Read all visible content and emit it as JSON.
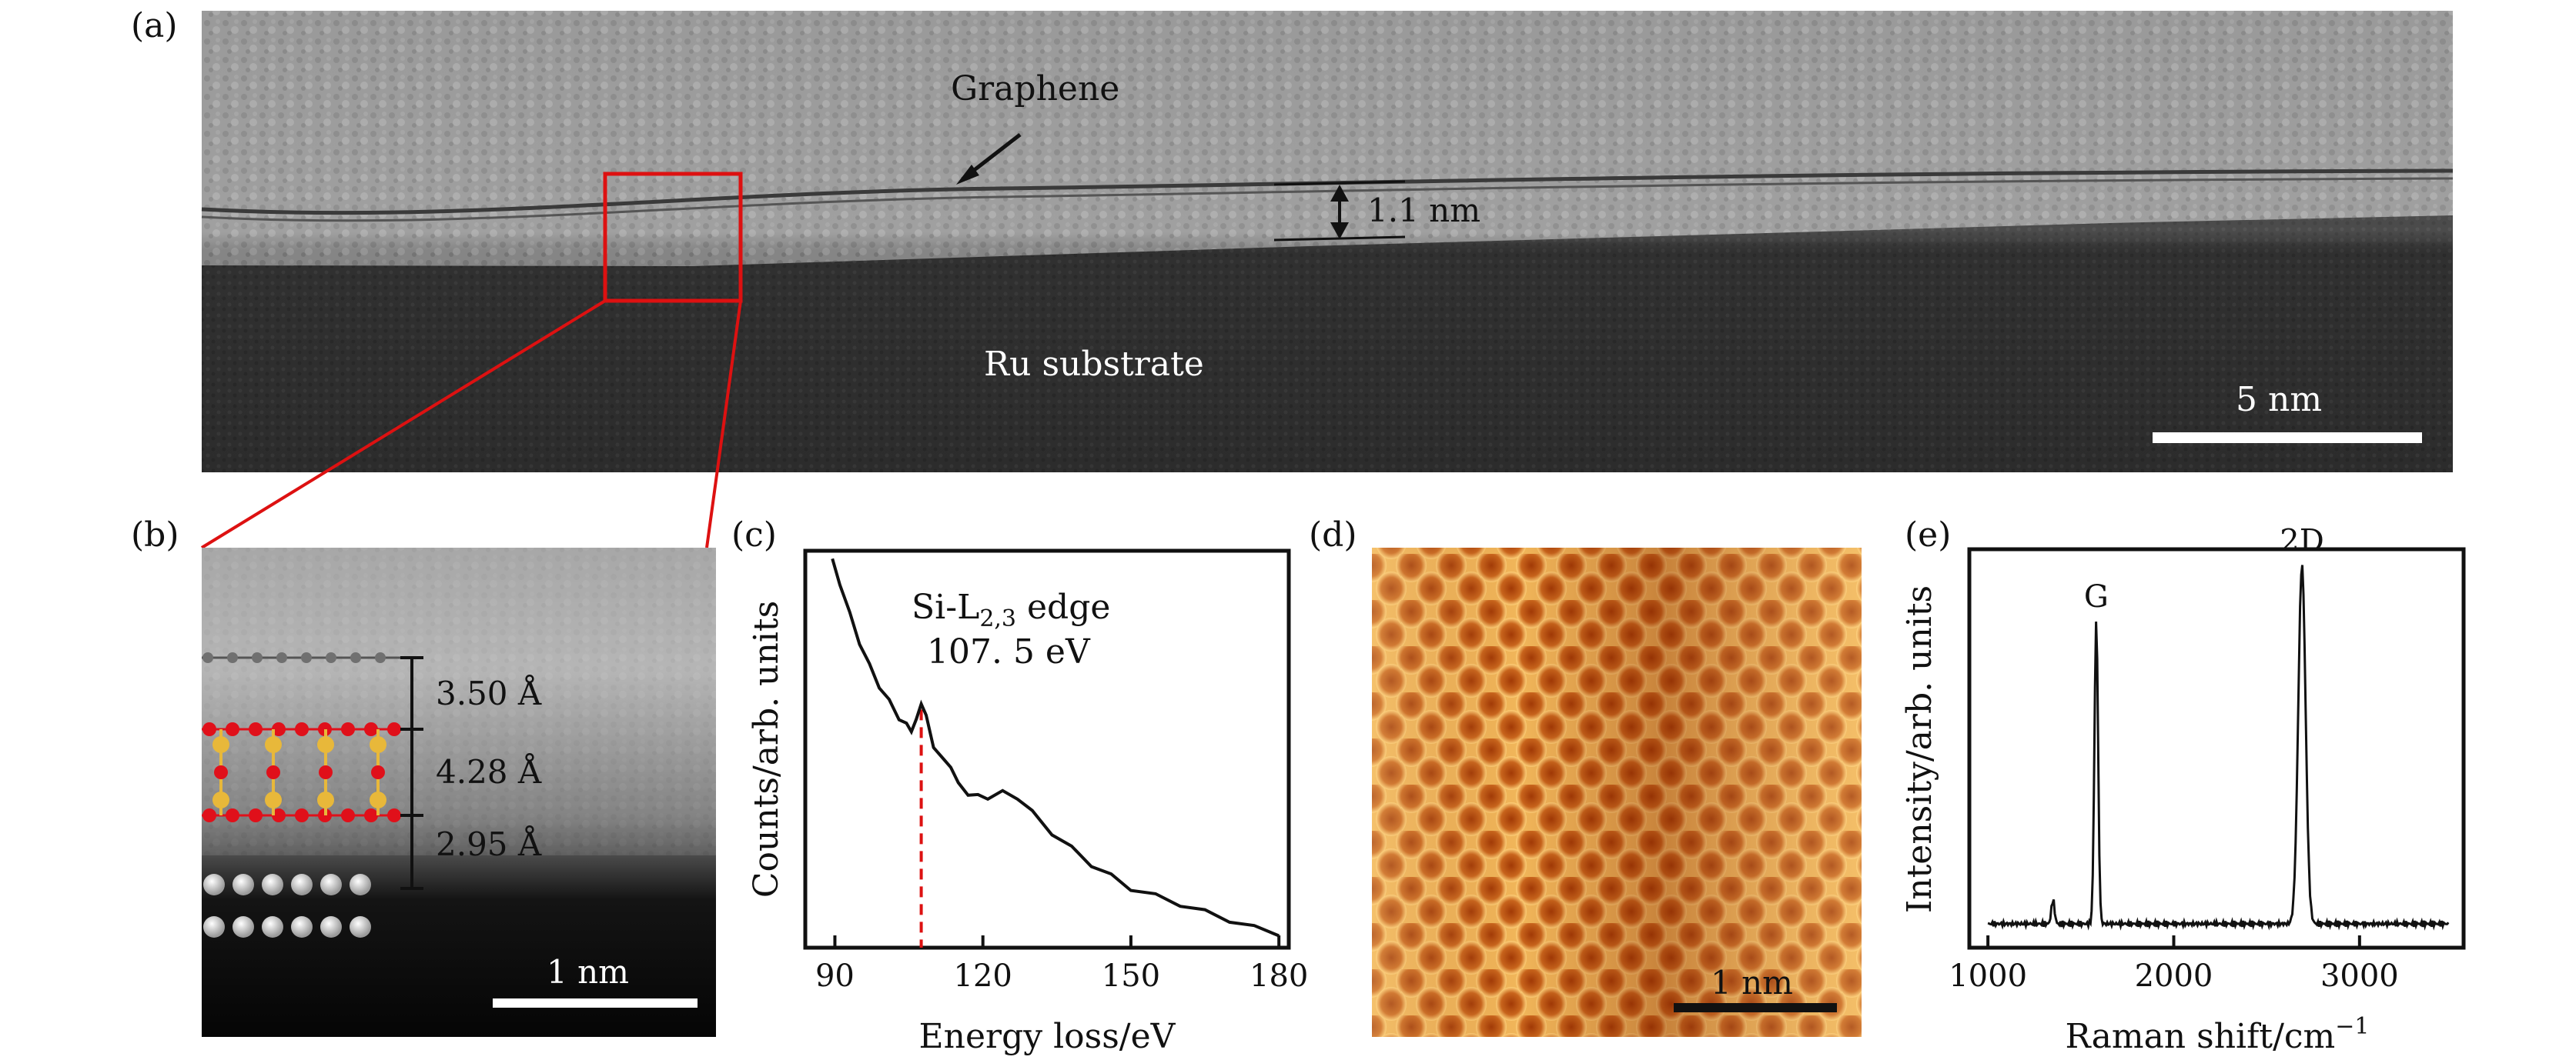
{
  "panels": {
    "a": {
      "label": "(a)",
      "graphene_label": "Graphene",
      "thickness_label": "1.1 nm",
      "substrate_label": "Ru substrate",
      "scale_label": "5 nm",
      "colors": {
        "zoom_box": "#dd1111",
        "scale_bar": "#ffffff"
      }
    },
    "b": {
      "label": "(b)",
      "spacings": [
        "3.50 Å",
        "4.28 Å",
        "2.95 Å"
      ],
      "scale_label": "1 nm",
      "colors": {
        "oxygen": "#e0101a",
        "silicon": "#e8b83a",
        "carbon": "#707070",
        "ruthenium": "#d9d9d9"
      }
    },
    "d": {
      "label": "(d)",
      "scale_label": "1 nm",
      "colors": {
        "bright": "#ffd27a",
        "dark": "#a23a06"
      }
    }
  },
  "chart_data": [
    {
      "panel": "(c)",
      "type": "line",
      "xlabel": "Energy loss/eV",
      "ylabel": "Counts/arb. units",
      "xlim": [
        84,
        182
      ],
      "ylim": [
        0,
        1
      ],
      "xticks": [
        90,
        120,
        150,
        180
      ],
      "yticks": [],
      "annotation": {
        "line1": "Si-L",
        "sub": "2,3",
        "line1_tail": " edge",
        "line2": "107. 5 eV",
        "marker_x": 107.5,
        "marker_color": "#dd1111"
      },
      "series": [
        {
          "x": [
            89.5,
            91,
            93,
            95,
            97,
            99,
            101,
            103,
            104.5,
            105.5,
            106.5,
            107.5,
            108.5,
            110,
            112,
            113.5,
            115,
            117,
            119,
            121,
            124,
            127,
            130,
            134,
            138,
            142,
            146,
            150,
            155,
            160,
            165,
            170,
            175,
            180
          ],
          "y": [
            0.98,
            0.92,
            0.84,
            0.77,
            0.71,
            0.66,
            0.62,
            0.58,
            0.56,
            0.55,
            0.57,
            0.62,
            0.58,
            0.51,
            0.47,
            0.46,
            0.41,
            0.39,
            0.38,
            0.38,
            0.39,
            0.38,
            0.34,
            0.29,
            0.25,
            0.21,
            0.18,
            0.15,
            0.13,
            0.11,
            0.09,
            0.07,
            0.05,
            0.03
          ]
        }
      ]
    },
    {
      "panel": "(e)",
      "type": "line",
      "xlabel": "Raman shift/cm",
      "xlabel_sup": "−1",
      "ylabel": "Intensity/arb. units",
      "xlim": [
        900,
        3560
      ],
      "ylim": [
        0,
        1
      ],
      "xticks": [
        1000,
        2000,
        3000
      ],
      "yticks": [],
      "peaks": [
        {
          "label": "G",
          "x": 1583,
          "height": 0.76
        },
        {
          "label": "2D",
          "x": 2690,
          "height": 0.9
        },
        {
          "label": "",
          "x": 1350,
          "height": 0.06
        }
      ],
      "baseline": 0.06
    }
  ]
}
